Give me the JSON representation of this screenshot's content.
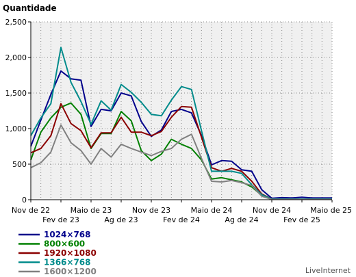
{
  "chart_data": {
    "type": "line",
    "ylabel": "Quantidade",
    "ylim": [
      0,
      2500
    ],
    "y_ticks": [
      "0",
      "500",
      "1,000",
      "1,500",
      "2,000",
      "2,500"
    ],
    "y_tick_values": [
      0,
      500,
      1000,
      1500,
      2000,
      2500
    ],
    "x_ticks_row1": [
      {
        "index": 0,
        "label": "Nov de 22"
      },
      {
        "index": 6,
        "label": "Maio de 23"
      },
      {
        "index": 12,
        "label": "Nov de 23"
      },
      {
        "index": 18,
        "label": "Maio de 24"
      },
      {
        "index": 24,
        "label": "Nov de 24"
      },
      {
        "index": 30,
        "label": "Maio de 25"
      }
    ],
    "x_ticks_row2": [
      {
        "index": 3,
        "label": "Fev de 23"
      },
      {
        "index": 9,
        "label": "Ag de 23"
      },
      {
        "index": 15,
        "label": "Fev de 24"
      },
      {
        "index": 21,
        "label": "Ag de 24"
      },
      {
        "index": 27,
        "label": "Fev de 25"
      }
    ],
    "grid": true,
    "legend_position": "bottom-left",
    "series": [
      {
        "name": "1024×768",
        "color": "#00008b",
        "values": [
          750,
          1120,
          1480,
          1810,
          1700,
          1680,
          1030,
          1270,
          1250,
          1500,
          1460,
          1100,
          890,
          980,
          1240,
          1270,
          1220,
          900,
          490,
          550,
          540,
          420,
          400,
          140,
          20,
          30,
          25,
          35,
          25,
          25,
          25
        ]
      },
      {
        "name": "800×600",
        "color": "#008000",
        "values": [
          560,
          950,
          1150,
          1300,
          1360,
          1200,
          720,
          930,
          930,
          1240,
          1110,
          690,
          550,
          640,
          850,
          780,
          720,
          560,
          290,
          310,
          280,
          250,
          180,
          60,
          5,
          5,
          5,
          5,
          5,
          5,
          5
        ]
      },
      {
        "name": "1920×1080",
        "color": "#8b0000",
        "values": [
          660,
          720,
          900,
          1350,
          1070,
          970,
          730,
          940,
          940,
          1160,
          950,
          950,
          900,
          960,
          1160,
          1310,
          1300,
          880,
          450,
          400,
          440,
          400,
          260,
          80,
          10,
          10,
          10,
          10,
          10,
          10,
          10
        ]
      },
      {
        "name": "1366×768",
        "color": "#008b8b",
        "values": [
          900,
          1150,
          1350,
          2140,
          1650,
          1380,
          1060,
          1390,
          1260,
          1620,
          1510,
          1370,
          1200,
          1180,
          1400,
          1590,
          1550,
          970,
          400,
          400,
          400,
          370,
          210,
          70,
          10,
          10,
          10,
          10,
          10,
          10,
          10
        ]
      },
      {
        "name": "1600×1200",
        "color": "#808080",
        "values": [
          450,
          520,
          670,
          1050,
          800,
          690,
          500,
          720,
          600,
          780,
          720,
          670,
          620,
          680,
          720,
          850,
          920,
          580,
          260,
          250,
          270,
          240,
          200,
          50,
          5,
          5,
          5,
          5,
          5,
          5,
          5
        ]
      }
    ]
  },
  "credit": "LiveInternet"
}
